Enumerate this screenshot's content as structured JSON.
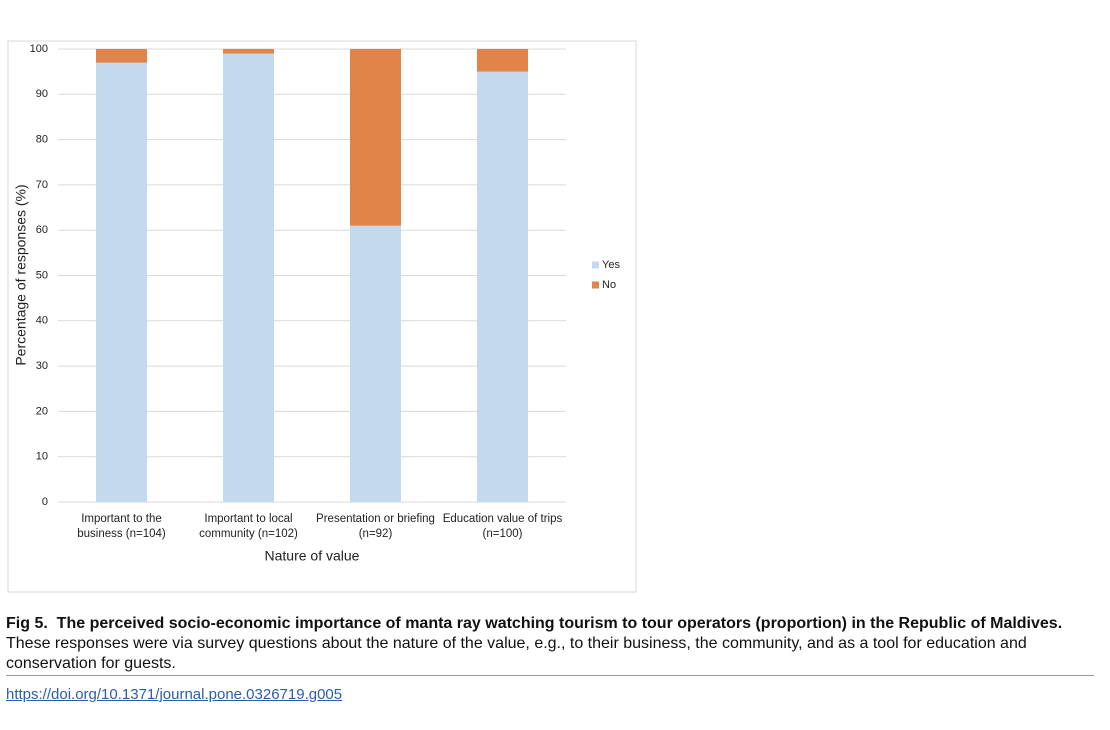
{
  "chart_data": {
    "type": "stacked_bar",
    "categories": [
      "Important to the business (n=104)",
      "Important to local community (n=102)",
      "Presentation or briefing (n=92)",
      "Education value of trips (n=100)"
    ],
    "series": [
      {
        "name": "Yes",
        "color": "#c5d9ee",
        "values": [
          97,
          99,
          61,
          95
        ]
      },
      {
        "name": "No",
        "color": "#e0844a",
        "values": [
          3,
          1,
          39,
          5
        ]
      }
    ],
    "xlabel": "Nature of value",
    "ylabel": "Percentage of responses (%)",
    "ylim": [
      0,
      100
    ],
    "yticks": [
      0,
      10,
      20,
      30,
      40,
      50,
      60,
      70,
      80,
      90,
      100
    ],
    "grid": true,
    "legend": "right"
  },
  "caption": {
    "label": "Fig 5.",
    "title": "The perceived socio-economic importance of manta ray watching tourism to tour operators (proportion) in the Republic of Maldives.",
    "text": "These responses were via survey questions about the nature of the value, e.g., to their business, the community, and as a tool for education and conservation for guests."
  },
  "doi": "https://doi.org/10.1371/journal.pone.0326719.g005"
}
